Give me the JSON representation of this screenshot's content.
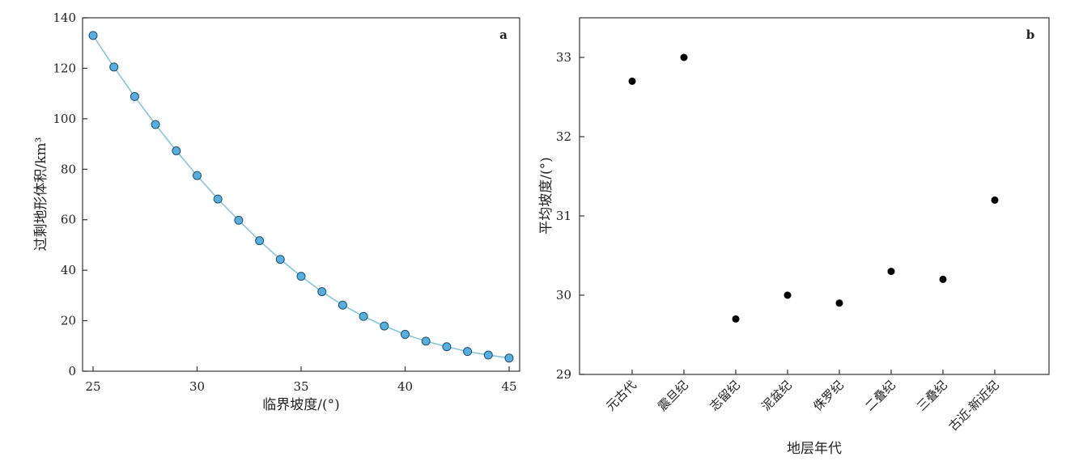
{
  "chart_data": [
    {
      "type": "line",
      "panel_label": "a",
      "xlabel": "临界坡度/(°)",
      "ylabel": "过剩地形体积/km³",
      "xlim": [
        25,
        45
      ],
      "ylim": [
        0,
        140
      ],
      "xticks": [
        25,
        30,
        35,
        40,
        45
      ],
      "yticks": [
        0,
        20,
        40,
        60,
        80,
        100,
        120,
        140
      ],
      "grid": false,
      "colors": {
        "line": "#7cc3db",
        "marker_fill": "#55b0df",
        "marker_edge": "#1f4e6b"
      },
      "x": [
        25,
        26,
        27,
        28,
        29,
        30,
        31,
        32,
        33,
        34,
        35,
        36,
        37,
        38,
        39,
        40,
        41,
        42,
        43,
        44,
        45
      ],
      "y": [
        133,
        120.5,
        108.8,
        97.7,
        87.3,
        77.5,
        68.2,
        59.8,
        51.7,
        44.3,
        37.6,
        31.5,
        26.2,
        21.7,
        17.9,
        14.6,
        11.9,
        9.7,
        7.8,
        6.4,
        5.2
      ]
    },
    {
      "type": "scatter",
      "panel_label": "b",
      "xlabel": "地层年代",
      "ylabel": "平均坡度/(°)",
      "ylim": [
        29,
        33.5
      ],
      "yticks": [
        29,
        30,
        31,
        32,
        33
      ],
      "grid": false,
      "colors": {
        "marker": "#000000"
      },
      "categories": [
        "元古代",
        "震旦纪",
        "志留纪",
        "泥盆纪",
        "侏罗纪",
        "二叠纪",
        "三叠纪",
        "古近-新近纪"
      ],
      "values": [
        32.7,
        33.0,
        29.7,
        30.0,
        29.9,
        30.3,
        30.2,
        31.2
      ]
    }
  ]
}
